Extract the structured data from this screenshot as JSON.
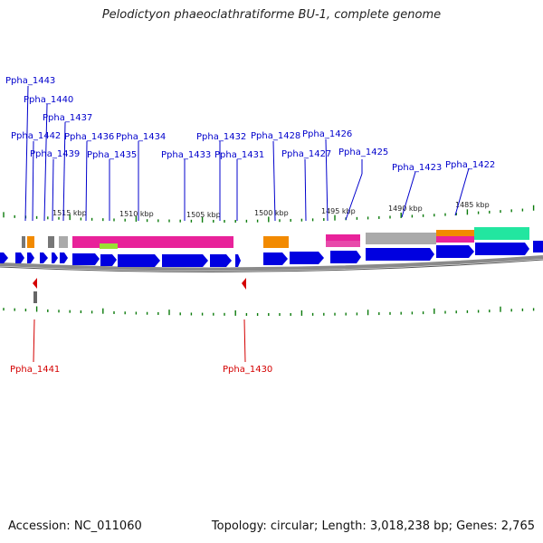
{
  "title": "Pelodictyon phaeoclathratiforme BU-1, complete genome",
  "accession": "Accession: NC_011060",
  "summary": "Topology: circular; Length: 3,018,238 bp; Genes: 2,765",
  "colors": {
    "gene_forward": "#0000e0",
    "label_forward": "#0000cc",
    "label_reverse": "#d40000",
    "tick": "#0a7a0a",
    "backbone": "#888888",
    "cog_pink": "#e8229a",
    "cog_orange": "#f28a00",
    "cog_green": "#22e6a0",
    "cog_gray": "#aaaaaa",
    "cog_lime": "#99e033"
  },
  "kbp_ticks": [
    "1515 kbp",
    "1510 kbp",
    "1505 kbp",
    "1500 kbp",
    "1495 kbp",
    "1490 kbp",
    "1485 kbp"
  ],
  "forward_genes": [
    "Ppha_1443",
    "Ppha_1440",
    "Ppha_1437",
    "Ppha_1442",
    "Ppha_1436",
    "Ppha_1434",
    "Ppha_1432",
    "Ppha_1428",
    "Ppha_1426",
    "Ppha_1439",
    "Ppha_1435",
    "Ppha_1433",
    "Ppha_1431",
    "Ppha_1427",
    "Ppha_1425",
    "Ppha_1423",
    "Ppha_1422"
  ],
  "reverse_genes": [
    "Ppha_1441",
    "Ppha_1430"
  ]
}
